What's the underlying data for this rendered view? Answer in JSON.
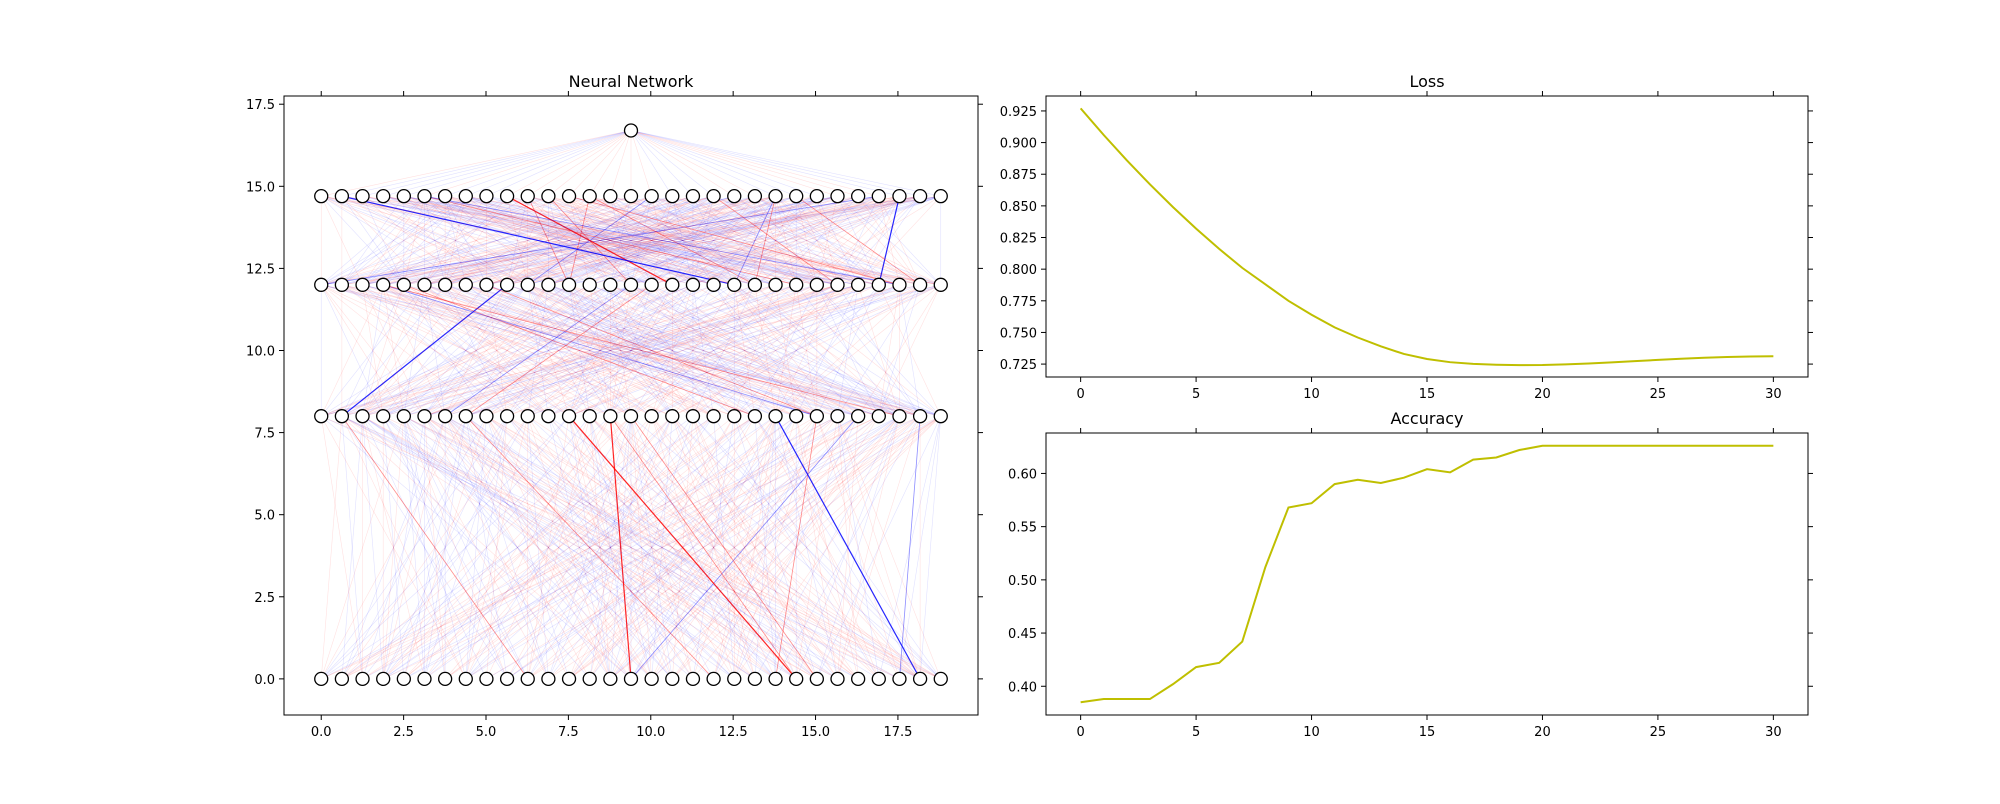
{
  "chart_data": [
    {
      "type": "network",
      "title": "Neural Network",
      "xlim": [
        -1.13,
        19.93
      ],
      "ylim": [
        -1.1,
        17.75
      ],
      "xticks": [
        "0.0",
        "2.5",
        "5.0",
        "7.5",
        "10.0",
        "12.5",
        "15.0",
        "17.5"
      ],
      "yticks": [
        "0.0",
        "2.5",
        "5.0",
        "7.5",
        "10.0",
        "12.5",
        "15.0",
        "17.5"
      ],
      "layers": [
        {
          "y": 0.0,
          "nodes": 31,
          "x_start": 0.0,
          "x_end": 18.8
        },
        {
          "y": 8.0,
          "nodes": 31,
          "x_start": 0.0,
          "x_end": 18.8
        },
        {
          "y": 12.0,
          "nodes": 31,
          "x_start": 0.0,
          "x_end": 18.8
        },
        {
          "y": 14.7,
          "nodes": 31,
          "x_start": 0.0,
          "x_end": 18.8
        },
        {
          "y": 16.7,
          "nodes": 1,
          "x_start": 9.4,
          "x_end": 9.4
        }
      ],
      "edge_colors": {
        "positive": "#0000ff",
        "negative": "#ff0000"
      },
      "grid": false
    },
    {
      "type": "line",
      "title": "Loss",
      "xlim": [
        -1.5,
        31.5
      ],
      "ylim": [
        0.7148,
        0.9368
      ],
      "xticks": [
        "0",
        "5",
        "10",
        "15",
        "20",
        "25",
        "30"
      ],
      "yticks": [
        "0.725",
        "0.750",
        "0.775",
        "0.800",
        "0.825",
        "0.850",
        "0.875",
        "0.900",
        "0.925"
      ],
      "series": [
        {
          "color": "#bfbf00",
          "x": [
            0,
            1,
            2,
            3,
            4,
            5,
            6,
            7,
            8,
            9,
            10,
            11,
            12,
            13,
            14,
            15,
            16,
            17,
            18,
            19,
            20,
            21,
            22,
            23,
            24,
            25,
            26,
            27,
            28,
            29,
            30
          ],
          "values": [
            0.927,
            0.906,
            0.886,
            0.867,
            0.849,
            0.832,
            0.816,
            0.801,
            0.788,
            0.775,
            0.764,
            0.754,
            0.746,
            0.739,
            0.733,
            0.729,
            0.7265,
            0.7252,
            0.7245,
            0.7242,
            0.7243,
            0.7248,
            0.7255,
            0.7264,
            0.7273,
            0.7283,
            0.7292,
            0.73,
            0.7306,
            0.731,
            0.7312
          ]
        }
      ],
      "grid": false
    },
    {
      "type": "line",
      "title": "Accuracy",
      "xlim": [
        -1.5,
        31.5
      ],
      "ylim": [
        0.373,
        0.638
      ],
      "xticks": [
        "0",
        "5",
        "10",
        "15",
        "20",
        "25",
        "30"
      ],
      "yticks": [
        "0.40",
        "0.45",
        "0.50",
        "0.55",
        "0.60"
      ],
      "series": [
        {
          "color": "#bfbf00",
          "x": [
            0,
            1,
            2,
            3,
            4,
            5,
            6,
            7,
            8,
            9,
            10,
            11,
            12,
            13,
            14,
            15,
            16,
            17,
            18,
            19,
            20,
            21,
            22,
            23,
            24,
            25,
            26,
            27,
            28,
            29,
            30
          ],
          "values": [
            0.385,
            0.388,
            0.388,
            0.388,
            0.402,
            0.418,
            0.422,
            0.442,
            0.512,
            0.568,
            0.572,
            0.59,
            0.594,
            0.591,
            0.596,
            0.604,
            0.601,
            0.613,
            0.615,
            0.622,
            0.626,
            0.626,
            0.626,
            0.626,
            0.626,
            0.626,
            0.626,
            0.626,
            0.626,
            0.626,
            0.626
          ]
        }
      ],
      "grid": false
    }
  ]
}
